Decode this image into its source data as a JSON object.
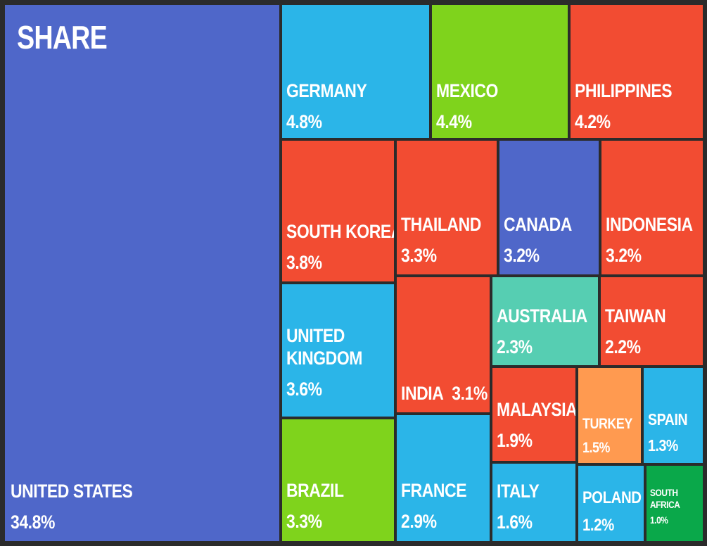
{
  "chart_data": {
    "type": "treemap",
    "title": "SHARE",
    "series": [
      {
        "label": "UNITED STATES",
        "value": 34.8,
        "value_label": "34.8%",
        "color": "#4f67c9"
      },
      {
        "label": "GERMANY",
        "value": 4.8,
        "value_label": "4.8%",
        "color": "#2bb5e8"
      },
      {
        "label": "MEXICO",
        "value": 4.4,
        "value_label": "4.4%",
        "color": "#7fd31c"
      },
      {
        "label": "PHILIPPINES",
        "value": 4.2,
        "value_label": "4.2%",
        "color": "#f24c32"
      },
      {
        "label": "SOUTH KOREA",
        "value": 3.8,
        "value_label": "3.8%",
        "color": "#f24c32"
      },
      {
        "label": "THAILAND",
        "value": 3.3,
        "value_label": "3.3%",
        "color": "#f24c32"
      },
      {
        "label": "CANADA",
        "value": 3.2,
        "value_label": "3.2%",
        "color": "#4f67c9"
      },
      {
        "label": "INDONESIA",
        "value": 3.2,
        "value_label": "3.2%",
        "color": "#f24c32"
      },
      {
        "label": "UNITED KINGDOM",
        "value": 3.6,
        "value_label": "3.6%",
        "color": "#2bb5e8"
      },
      {
        "label": "INDIA",
        "value": 3.1,
        "value_label": "3.1%",
        "color": "#f24c32"
      },
      {
        "label": "AUSTRALIA",
        "value": 2.3,
        "value_label": "2.3%",
        "color": "#56ceb2"
      },
      {
        "label": "TAIWAN",
        "value": 2.2,
        "value_label": "2.2%",
        "color": "#f24c32"
      },
      {
        "label": "MALAYSIA",
        "value": 1.9,
        "value_label": "1.9%",
        "color": "#f24c32"
      },
      {
        "label": "TURKEY",
        "value": 1.5,
        "value_label": "1.5%",
        "color": "#ff9a50"
      },
      {
        "label": "SPAIN",
        "value": 1.3,
        "value_label": "1.3%",
        "color": "#2bb5e8"
      },
      {
        "label": "BRAZIL",
        "value": 3.3,
        "value_label": "3.3%",
        "color": "#7fd31c"
      },
      {
        "label": "FRANCE",
        "value": 2.9,
        "value_label": "2.9%",
        "color": "#2bb5e8"
      },
      {
        "label": "ITALY",
        "value": 1.6,
        "value_label": "1.6%",
        "color": "#2bb5e8"
      },
      {
        "label": "POLAND",
        "value": 1.2,
        "value_label": "1.2%",
        "color": "#2bb5e8"
      },
      {
        "label": "SOUTH AFRICA",
        "value": 1.0,
        "value_label": "1.0%",
        "color": "#0aa84a"
      }
    ]
  }
}
